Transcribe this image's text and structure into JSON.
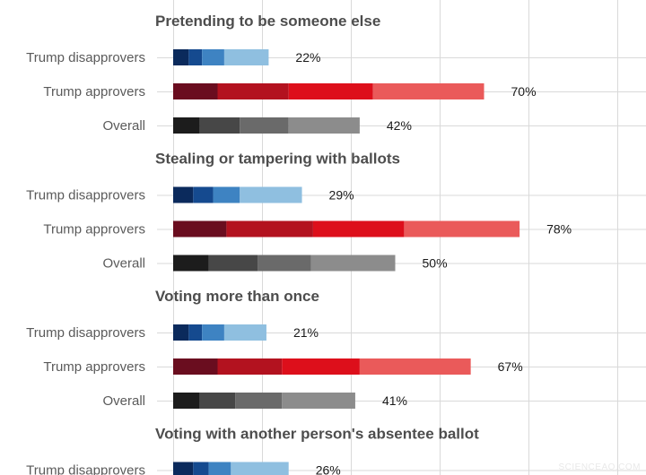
{
  "chart_data": {
    "type": "bar",
    "orientation": "horizontal",
    "stacked": true,
    "segments_per_bar": 4,
    "xlim": [
      0,
      100
    ],
    "grid": true,
    "palettes": {
      "Trump disapprovers": [
        "#0b2a5c",
        "#154a8f",
        "#3e83c2",
        "#8fbfe0"
      ],
      "Trump approvers": [
        "#6a0d1f",
        "#b3121f",
        "#dd0f1b",
        "#ea5a5a"
      ],
      "Overall": [
        "#1c1c1c",
        "#474747",
        "#6a6a6a",
        "#8c8c8c"
      ]
    },
    "groups": [
      {
        "title": "Pretending to be someone else",
        "rows": [
          {
            "label": "Trump disapprovers",
            "segments": [
              3.5,
              3,
              5,
              10
            ],
            "total_label": "22%"
          },
          {
            "label": "Trump approvers",
            "segments": [
              10,
              16,
              19,
              25
            ],
            "total_label": "70%"
          },
          {
            "label": "Overall",
            "segments": [
              6,
              9,
              11,
              16
            ],
            "total_label": "42%"
          }
        ]
      },
      {
        "title": "Stealing or tampering with ballots",
        "rows": [
          {
            "label": "Trump disapprovers",
            "segments": [
              4.5,
              4.5,
              6,
              14
            ],
            "total_label": "29%"
          },
          {
            "label": "Trump approvers",
            "segments": [
              12,
              19.5,
              20.5,
              26
            ],
            "total_label": "78%"
          },
          {
            "label": "Overall",
            "segments": [
              8,
              11,
              12,
              19
            ],
            "total_label": "50%"
          }
        ]
      },
      {
        "title": "Voting more than once",
        "rows": [
          {
            "label": "Trump disapprovers",
            "segments": [
              3.5,
              3,
              5,
              9.5
            ],
            "total_label": "21%"
          },
          {
            "label": "Trump approvers",
            "segments": [
              10,
              14.5,
              17.5,
              25
            ],
            "total_label": "67%"
          },
          {
            "label": "Overall",
            "segments": [
              6,
              8,
              10.5,
              16.5
            ],
            "total_label": "41%"
          }
        ]
      },
      {
        "title": "Voting with another person's absentee ballot",
        "rows": [
          {
            "label": "Trump disapprovers",
            "segments": [
              4.5,
              3.5,
              5,
              13
            ],
            "total_label": "26%"
          }
        ]
      }
    ]
  },
  "watermark": "SCIENCEAQ.COM"
}
